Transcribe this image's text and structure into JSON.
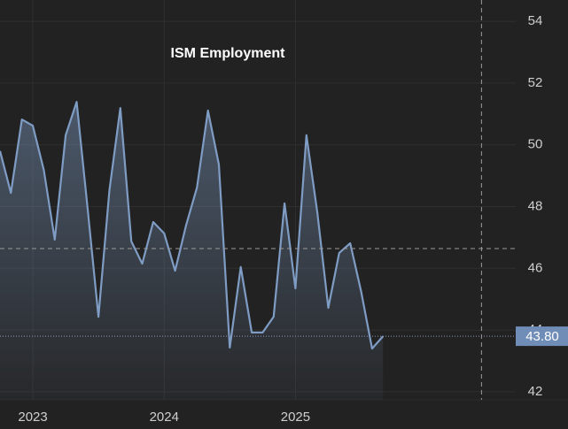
{
  "chart_data": {
    "type": "line",
    "title": "ISM Employment",
    "categories": [
      null,
      null,
      null,
      "2023",
      null,
      null,
      null,
      null,
      null,
      null,
      null,
      null,
      null,
      null,
      null,
      "2024",
      null,
      null,
      null,
      null,
      null,
      null,
      null,
      null,
      null,
      null,
      null,
      "2025",
      null,
      null,
      null,
      null,
      null,
      null,
      null,
      null
    ],
    "values": [
      49.8,
      48.44,
      50.82,
      50.62,
      49.19,
      46.93,
      50.31,
      51.39,
      47.96,
      44.43,
      48.53,
      51.19,
      46.87,
      46.15,
      47.5,
      47.13,
      45.92,
      47.38,
      48.62,
      51.11,
      49.36,
      43.43,
      46.04,
      43.92,
      43.92,
      44.43,
      48.1,
      45.35,
      50.31,
      47.81,
      44.72,
      46.5,
      46.81,
      45.24,
      43.4,
      43.8
    ],
    "value_labels": [
      null,
      null,
      null,
      null,
      null,
      null,
      null,
      null,
      null,
      null,
      null,
      null,
      null,
      null,
      null,
      null,
      null,
      null,
      null,
      null,
      null,
      null,
      null,
      null,
      null,
      null,
      null,
      null,
      null,
      null,
      null,
      null,
      null,
      null,
      null,
      "43.80"
    ],
    "color": "#7f9cc4",
    "ylim": [
      41.74,
      54.69
    ],
    "yticks": [
      42,
      44,
      46,
      48,
      50,
      52,
      54
    ],
    "grid": true,
    "crosshair": {
      "x": 44,
      "y": 46.64
    }
  }
}
